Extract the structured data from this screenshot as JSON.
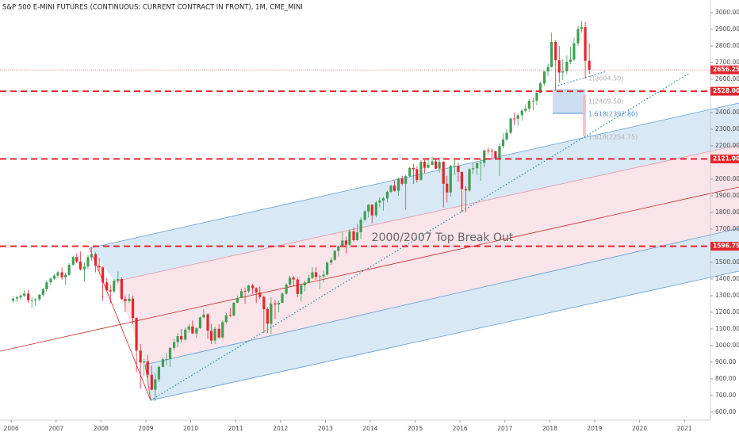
{
  "chart_data": {
    "type": "candlestick",
    "title": "S&P 500 E-MINI FUTURES (CONTINUOUS: CURRENT CONTRACT IN FRONT), 1M, CME_MINI",
    "x": [
      2006.04,
      2006.13,
      2006.21,
      2006.29,
      2006.38,
      2006.46,
      2006.54,
      2006.63,
      2006.71,
      2006.79,
      2006.88,
      2006.96,
      2007.04,
      2007.13,
      2007.21,
      2007.29,
      2007.38,
      2007.46,
      2007.54,
      2007.63,
      2007.71,
      2007.79,
      2007.88,
      2007.96,
      2008.04,
      2008.13,
      2008.21,
      2008.29,
      2008.38,
      2008.46,
      2008.54,
      2008.63,
      2008.71,
      2008.79,
      2008.88,
      2008.96,
      2009.04,
      2009.13,
      2009.21,
      2009.29,
      2009.38,
      2009.46,
      2009.54,
      2009.63,
      2009.71,
      2009.79,
      2009.88,
      2009.96,
      2010.04,
      2010.13,
      2010.21,
      2010.29,
      2010.38,
      2010.46,
      2010.54,
      2010.63,
      2010.71,
      2010.79,
      2010.88,
      2010.96,
      2011.04,
      2011.13,
      2011.21,
      2011.29,
      2011.38,
      2011.46,
      2011.54,
      2011.63,
      2011.71,
      2011.79,
      2011.88,
      2011.96,
      2012.04,
      2012.13,
      2012.21,
      2012.29,
      2012.38,
      2012.46,
      2012.54,
      2012.63,
      2012.71,
      2012.79,
      2012.88,
      2012.96,
      2013.04,
      2013.13,
      2013.21,
      2013.29,
      2013.38,
      2013.46,
      2013.54,
      2013.63,
      2013.71,
      2013.79,
      2013.88,
      2013.96,
      2014.04,
      2014.13,
      2014.21,
      2014.29,
      2014.38,
      2014.46,
      2014.54,
      2014.63,
      2014.71,
      2014.79,
      2014.88,
      2014.96,
      2015.04,
      2015.13,
      2015.21,
      2015.29,
      2015.38,
      2015.46,
      2015.54,
      2015.63,
      2015.71,
      2015.79,
      2015.88,
      2015.96,
      2016.04,
      2016.13,
      2016.21,
      2016.29,
      2016.38,
      2016.46,
      2016.54,
      2016.63,
      2016.71,
      2016.79,
      2016.88,
      2016.96,
      2017.04,
      2017.13,
      2017.21,
      2017.29,
      2017.38,
      2017.46,
      2017.54,
      2017.63,
      2017.71,
      2017.79,
      2017.88,
      2017.96,
      2018.04,
      2018.13,
      2018.21,
      2018.29,
      2018.38,
      2018.46,
      2018.54,
      2018.63,
      2018.71,
      2018.79,
      2018.88
    ],
    "open": [
      1270,
      1282,
      1290,
      1300,
      1312,
      1272,
      1272,
      1278,
      1305,
      1338,
      1380,
      1402,
      1420,
      1440,
      1410,
      1425,
      1485,
      1532,
      1505,
      1458,
      1475,
      1530,
      1550,
      1480,
      1470,
      1380,
      1332,
      1325,
      1390,
      1400,
      1280,
      1267,
      1282,
      1165,
      970,
      898,
      905,
      825,
      735,
      797,
      872,
      918,
      919,
      986,
      1020,
      1057,
      1036,
      1096,
      1115,
      1073,
      1104,
      1169,
      1187,
      1089,
      1030,
      1101,
      1049,
      1141,
      1183,
      1180,
      1257,
      1286,
      1327,
      1326,
      1361,
      1345,
      1320,
      1292,
      1219,
      1131,
      1253,
      1247,
      1257,
      1312,
      1366,
      1408,
      1397,
      1310,
      1362,
      1379,
      1406,
      1440,
      1412,
      1416,
      1426,
      1498,
      1515,
      1569,
      1597,
      1631,
      1606,
      1686,
      1633,
      1681,
      1756,
      1806,
      1846,
      1782,
      1859,
      1872,
      1884,
      1924,
      1960,
      1930,
      2003,
      1972,
      2018,
      2067,
      2059,
      1995,
      2104,
      2068,
      2086,
      2107,
      2063,
      2104,
      1972,
      1920,
      2079,
      2080,
      2043,
      1940,
      1932,
      2059,
      2065,
      2096,
      2098,
      2173,
      2171,
      2168,
      2126,
      2198,
      2238,
      2278,
      2364,
      2362,
      2384,
      2411,
      2423,
      2470,
      2471,
      2519,
      2575,
      2647,
      2674,
      2824,
      2714,
      2640,
      2648,
      2705,
      2718,
      2816,
      2902,
      2913,
      2711
    ],
    "high": [
      1295,
      1300,
      1312,
      1330,
      1335,
      1290,
      1285,
      1310,
      1345,
      1390,
      1410,
      1430,
      1450,
      1470,
      1440,
      1495,
      1540,
      1555,
      1565,
      1500,
      1545,
      1590,
      1560,
      1525,
      1475,
      1405,
      1365,
      1400,
      1445,
      1410,
      1300,
      1310,
      1300,
      1170,
      1010,
      920,
      945,
      880,
      835,
      880,
      930,
      955,
      990,
      1040,
      1075,
      1100,
      1110,
      1130,
      1150,
      1110,
      1175,
      1220,
      1195,
      1130,
      1115,
      1130,
      1150,
      1195,
      1225,
      1260,
      1300,
      1345,
      1345,
      1365,
      1370,
      1350,
      1355,
      1300,
      1230,
      1290,
      1275,
      1270,
      1320,
      1375,
      1420,
      1420,
      1410,
      1365,
      1390,
      1425,
      1470,
      1470,
      1425,
      1450,
      1505,
      1530,
      1575,
      1600,
      1685,
      1655,
      1700,
      1710,
      1730,
      1770,
      1815,
      1850,
      1850,
      1870,
      1890,
      1895,
      1930,
      1965,
      1990,
      2010,
      2020,
      2025,
      2075,
      2090,
      2075,
      2115,
      2115,
      2125,
      2135,
      2125,
      2130,
      2110,
      2020,
      2085,
      2115,
      2100,
      2045,
      1960,
      2065,
      2100,
      2105,
      2120,
      2178,
      2190,
      2185,
      2170,
      2215,
      2275,
      2300,
      2370,
      2400,
      2395,
      2420,
      2450,
      2480,
      2490,
      2520,
      2585,
      2650,
      2695,
      2880,
      2835,
      2800,
      2720,
      2745,
      2795,
      2850,
      2920,
      2950,
      2945,
      2815
    ],
    "low": [
      1258,
      1262,
      1275,
      1290,
      1255,
      1225,
      1240,
      1265,
      1295,
      1325,
      1365,
      1395,
      1405,
      1395,
      1365,
      1420,
      1480,
      1495,
      1450,
      1385,
      1460,
      1510,
      1440,
      1445,
      1270,
      1325,
      1255,
      1315,
      1375,
      1275,
      1200,
      1255,
      1130,
      840,
      740,
      815,
      805,
      730,
      667,
      780,
      870,
      885,
      870,
      975,
      990,
      1020,
      1030,
      1080,
      1070,
      1045,
      1100,
      1165,
      1040,
      1010,
      1010,
      1040,
      1040,
      1130,
      1170,
      1175,
      1255,
      1285,
      1250,
      1315,
      1310,
      1255,
      1280,
      1075,
      1075,
      1070,
      1160,
      1200,
      1255,
      1305,
      1350,
      1355,
      1290,
      1265,
      1325,
      1375,
      1400,
      1395,
      1340,
      1380,
      1420,
      1485,
      1510,
      1535,
      1595,
      1555,
      1600,
      1625,
      1630,
      1640,
      1745,
      1770,
      1735,
      1770,
      1830,
      1810,
      1860,
      1915,
      1925,
      1900,
      1960,
      1815,
      2010,
      1970,
      1980,
      1990,
      2035,
      2065,
      2080,
      2060,
      2040,
      1830,
      1860,
      1895,
      2025,
      1985,
      1800,
      1800,
      1925,
      2030,
      2025,
      1990,
      2070,
      2150,
      2115,
      2120,
      2020,
      2185,
      2230,
      2270,
      2325,
      2320,
      2350,
      2400,
      2405,
      2415,
      2445,
      2515,
      2560,
      2620,
      2670,
      2530,
      2580,
      2595,
      2630,
      2690,
      2710,
      2800,
      2880,
      2603,
      2630
    ],
    "close": [
      1282,
      1290,
      1300,
      1312,
      1272,
      1272,
      1278,
      1305,
      1338,
      1380,
      1402,
      1420,
      1440,
      1410,
      1425,
      1485,
      1532,
      1505,
      1458,
      1475,
      1530,
      1550,
      1480,
      1470,
      1380,
      1332,
      1325,
      1390,
      1400,
      1280,
      1267,
      1282,
      1165,
      970,
      898,
      905,
      825,
      735,
      797,
      872,
      918,
      919,
      986,
      1020,
      1057,
      1036,
      1096,
      1115,
      1073,
      1104,
      1169,
      1187,
      1089,
      1030,
      1101,
      1049,
      1141,
      1183,
      1180,
      1257,
      1286,
      1327,
      1326,
      1361,
      1345,
      1320,
      1292,
      1219,
      1131,
      1253,
      1247,
      1257,
      1312,
      1366,
      1408,
      1397,
      1310,
      1362,
      1379,
      1406,
      1440,
      1412,
      1416,
      1426,
      1498,
      1515,
      1569,
      1597,
      1631,
      1606,
      1686,
      1633,
      1681,
      1756,
      1806,
      1846,
      1782,
      1859,
      1872,
      1884,
      1924,
      1960,
      1930,
      2003,
      1972,
      2018,
      2067,
      2059,
      1995,
      2104,
      2068,
      2086,
      2107,
      2063,
      2104,
      1972,
      1920,
      2079,
      2080,
      2043,
      1940,
      1932,
      2059,
      2065,
      2096,
      2098,
      2173,
      2171,
      2168,
      2126,
      2198,
      2238,
      2278,
      2364,
      2362,
      2384,
      2411,
      2423,
      2470,
      2471,
      2519,
      2575,
      2647,
      2674,
      2824,
      2714,
      2640,
      2648,
      2705,
      2718,
      2816,
      2902,
      2913,
      2711,
      2656.25
    ],
    "up_color": "#3f9f54",
    "down_color": "#e5252e",
    "xlim": [
      2005.75,
      2021.58
    ],
    "xticks": [
      2006,
      2007,
      2008,
      2009,
      2010,
      2011,
      2012,
      2013,
      2014,
      2015,
      2016,
      2017,
      2018,
      2019,
      2020,
      2021
    ],
    "ylim": [
      552,
      3076
    ],
    "yticks": [
      {
        "value": 600,
        "label": "600.00"
      },
      {
        "value": 700,
        "label": "700.00"
      },
      {
        "value": 800,
        "label": "800.00"
      },
      {
        "value": 900,
        "label": "900.00"
      },
      {
        "value": 1000,
        "label": "1000.00"
      },
      {
        "value": 1100,
        "label": "1100.00"
      },
      {
        "value": 1200,
        "label": "1200.00"
      },
      {
        "value": 1300,
        "label": "1300.00"
      },
      {
        "value": 1400,
        "label": "1400.00"
      },
      {
        "value": 1500,
        "label": "1500.00"
      },
      {
        "value": 1700,
        "label": "1700.00"
      },
      {
        "value": 1800,
        "label": "1800.00"
      },
      {
        "value": 1900,
        "label": "1900.00"
      },
      {
        "value": 2000,
        "label": "2000.00"
      },
      {
        "value": 2200,
        "label": "2200.00"
      },
      {
        "value": 2300,
        "label": "2300.00"
      },
      {
        "value": 2400,
        "label": "2400.00"
      },
      {
        "value": 2600,
        "label": "2600.00"
      },
      {
        "value": 2700,
        "label": "2700.00"
      },
      {
        "value": 2800,
        "label": "2800.00"
      },
      {
        "value": 2900,
        "label": "2900.00"
      },
      {
        "value": 3000,
        "label": "3000.00"
      }
    ],
    "levels": [
      {
        "value": 2528,
        "label": "2528.00"
      },
      {
        "value": 2121,
        "label": "2121.00"
      },
      {
        "value": 1596.75,
        "label": "1596.75"
      }
    ],
    "last_price": {
      "value": 2656.25,
      "label": "2656.25"
    },
    "annotations": [
      "2000/2007 Top Break Out",
      "1(2604.50)",
      "1(2469.50)",
      "1.618(2392.80)",
      "1.618(2254.75)"
    ]
  }
}
